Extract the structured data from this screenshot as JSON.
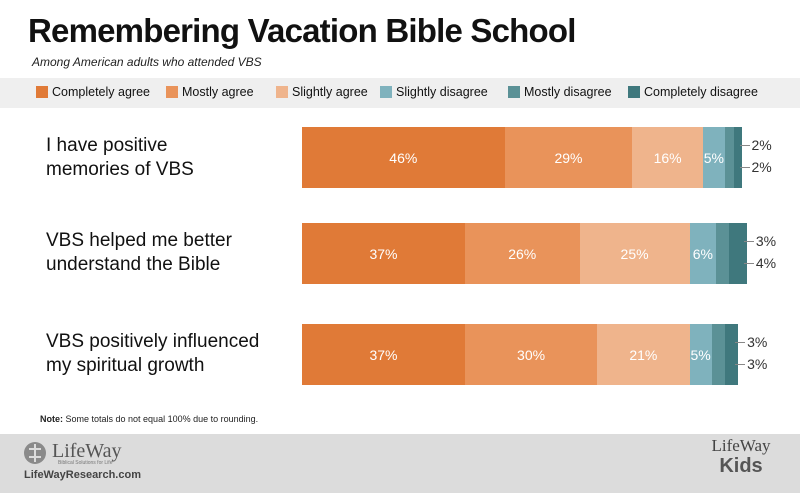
{
  "chart_data": {
    "type": "bar",
    "orientation": "horizontal-stacked",
    "title": "Remembering Vacation Bible School",
    "subtitle": "Among American adults who attended VBS",
    "legend_position": "top",
    "series_names": [
      "Completely agree",
      "Mostly agree",
      "Slightly agree",
      "Slightly disagree",
      "Mostly disagree",
      "Completely disagree"
    ],
    "colors": [
      "#e07a37",
      "#e9935a",
      "#efb48c",
      "#7fb2bd",
      "#5b9196",
      "#3f787d"
    ],
    "categories": [
      "I have positive memories of VBS",
      "VBS helped me better understand the Bible",
      "VBS positively influenced my spiritual growth"
    ],
    "rows": [
      {
        "label_lines": [
          "I have positive",
          "memories of VBS"
        ],
        "values": [
          46,
          29,
          16,
          5,
          2,
          2
        ],
        "display": [
          "46%",
          "29%",
          "16%",
          "5%",
          "2%",
          "2%"
        ]
      },
      {
        "label_lines": [
          "VBS helped me better",
          "understand the Bible"
        ],
        "values": [
          37,
          26,
          25,
          6,
          3,
          4
        ],
        "display": [
          "37%",
          "26%",
          "25%",
          "6%",
          "3%",
          "4%"
        ]
      },
      {
        "label_lines": [
          "VBS positively influenced",
          "my spiritual growth"
        ],
        "values": [
          37,
          30,
          21,
          5,
          3,
          3
        ],
        "display": [
          "37%",
          "30%",
          "21%",
          "5%",
          "3%",
          "3%"
        ]
      }
    ],
    "note_label": "Note:",
    "note_text": " Some totals do not equal 100% due to rounding."
  },
  "footer": {
    "logo_left": "LifeWay",
    "logo_tagline": "Biblical Solutions for Life",
    "url": "LifeWayResearch.com",
    "logo_right_top": "LifeWay",
    "logo_right_bottom": "Kids"
  }
}
